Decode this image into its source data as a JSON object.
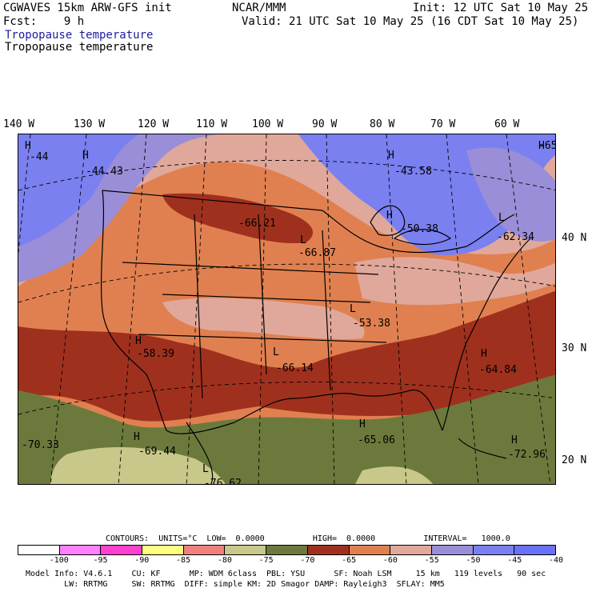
{
  "header": {
    "model": "CGWAVES 15km ARW-GFS init",
    "center": "NCAR/MMM",
    "init": "Init: 12 UTC Sat 10 May 25",
    "fcst": "Fcst:    9 h",
    "valid": "Valid: 21 UTC Sat 10 May 25 (16 CDT Sat 10 May 25)",
    "field_title_1": "Tropopause temperature",
    "field_title_2": "Tropopause temperature"
  },
  "axes": {
    "longitudes": [
      "140 W",
      "130 W",
      "120 W",
      "110 W",
      "100 W",
      "90 W",
      "80 W",
      "70 W",
      "60 W"
    ],
    "latitudes": [
      "40 N",
      "30 N",
      "20 N"
    ]
  },
  "map_labels": [
    {
      "text": "H",
      "kind": "high"
    },
    {
      "text": "-44",
      "kind": "value"
    },
    {
      "text": "H",
      "kind": "high"
    },
    {
      "text": "-44.43",
      "kind": "value"
    },
    {
      "text": "H",
      "kind": "high"
    },
    {
      "text": "-43.58",
      "kind": "value"
    },
    {
      "text": "H",
      "kind": "high"
    },
    {
      "text": "-65",
      "kind": "value"
    },
    {
      "text": "-66.21",
      "kind": "value"
    },
    {
      "text": "H",
      "kind": "high"
    },
    {
      "text": "-50.38",
      "kind": "value"
    },
    {
      "text": "L",
      "kind": "low"
    },
    {
      "text": "-62.34",
      "kind": "value"
    },
    {
      "text": "L",
      "kind": "low"
    },
    {
      "text": "-66.87",
      "kind": "value"
    },
    {
      "text": "L",
      "kind": "low"
    },
    {
      "text": "-53.38",
      "kind": "value"
    },
    {
      "text": "H",
      "kind": "high"
    },
    {
      "text": "-58.39",
      "kind": "value"
    },
    {
      "text": "L",
      "kind": "low"
    },
    {
      "text": "-66.14",
      "kind": "value"
    },
    {
      "text": "H",
      "kind": "high"
    },
    {
      "text": "-64.84",
      "kind": "value"
    },
    {
      "text": "-70.33",
      "kind": "value"
    },
    {
      "text": "H",
      "kind": "high"
    },
    {
      "text": "-69.44",
      "kind": "value"
    },
    {
      "text": "H",
      "kind": "high"
    },
    {
      "text": "-65.06",
      "kind": "value"
    },
    {
      "text": "H",
      "kind": "high"
    },
    {
      "text": "-72.96",
      "kind": "value"
    },
    {
      "text": "L",
      "kind": "low"
    },
    {
      "text": "-76.62",
      "kind": "value"
    }
  ],
  "contours": {
    "line": "CONTOURS:  UNITS=°C  LOW=  0.0000          HIGH=  0.0000          INTERVAL=   1000.0"
  },
  "colorbar": {
    "ticks": [
      "-100",
      "-95",
      "-90",
      "-85",
      "-80",
      "-75",
      "-70",
      "-65",
      "-60",
      "-55",
      "-50",
      "-45",
      "-40",
      "°C"
    ],
    "colors": [
      "#ffffff",
      "#ff80ff",
      "#ff40d0",
      "#ffff80",
      "#f08080",
      "#c8c88a",
      "#6b7a3c",
      "#a0301e",
      "#e08050",
      "#e0a89a",
      "#9a8ed8",
      "#7a80f0",
      "#6a70f8"
    ]
  },
  "footer": {
    "line1": "Model Info: V4.6.1    CU: KF      MP: WDM 6class  PBL: YSU      SF: Noah LSM     15 km   119 levels   90 sec",
    "line2": "        LW: RRTMG     SW: RRTMG  DIFF: simple KM: 2D Smagor DAMP: Rayleigh3  SFLAY: MM5"
  },
  "palette": {
    "navy_title": "#1c1c9c",
    "olive_dark": "#6b7a3c",
    "khaki": "#c8c88a",
    "maroon": "#a0301e",
    "orange": "#e08050",
    "pink": "#e0a89a",
    "lavender": "#9a8ed8",
    "blue_violet": "#7a80f0"
  }
}
